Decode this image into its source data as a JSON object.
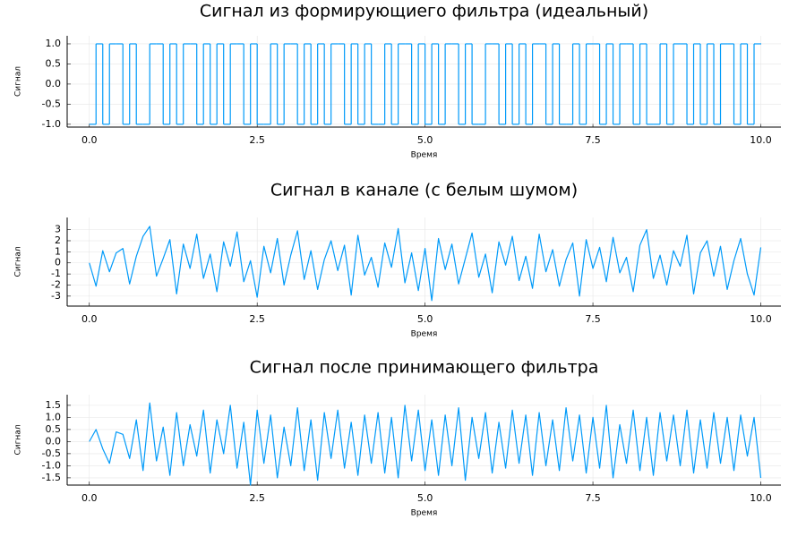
{
  "chart_data": [
    {
      "type": "line",
      "title": "Сигнал из формирующиего фильтра (идеальный)",
      "xlabel": "Время",
      "ylabel": "Сигнал",
      "step": "post",
      "grid": true,
      "color": "#009af9",
      "xlim": [
        -0.33,
        10.3
      ],
      "xticks": [
        {
          "value": 0,
          "label": "0.0"
        },
        2.5,
        {
          "value": 5,
          "label": "5.0"
        },
        7.5,
        {
          "value": 10,
          "label": "10.0"
        }
      ],
      "ylim": [
        -1.07,
        1.2
      ],
      "yticks": [
        {
          "value": 1,
          "label": "1.0"
        },
        0.5,
        {
          "value": 0,
          "label": "0.0"
        },
        -0.5,
        {
          "value": -1,
          "label": "-1.0"
        }
      ],
      "x": [
        0,
        0.1,
        0.2,
        0.3,
        0.4,
        0.5,
        0.6,
        0.7,
        0.8,
        0.9,
        1,
        1.1,
        1.2,
        1.3,
        1.4,
        1.5,
        1.6,
        1.7,
        1.8,
        1.9,
        2,
        2.1,
        2.2,
        2.3,
        2.4,
        2.5,
        2.6,
        2.7,
        2.8,
        2.9,
        3,
        3.1,
        3.2,
        3.3,
        3.4,
        3.5,
        3.6,
        3.7,
        3.8,
        3.9,
        4,
        4.1,
        4.2,
        4.3,
        4.4,
        4.5,
        4.6,
        4.7,
        4.8,
        4.9,
        5,
        5.1,
        5.2,
        5.3,
        5.4,
        5.5,
        5.6,
        5.7,
        5.8,
        5.9,
        6,
        6.1,
        6.2,
        6.3,
        6.4,
        6.5,
        6.6,
        6.7,
        6.8,
        6.9,
        7,
        7.1,
        7.2,
        7.3,
        7.4,
        7.5,
        7.6,
        7.7,
        7.8,
        7.9,
        8,
        8.1,
        8.2,
        8.3,
        8.4,
        8.5,
        8.6,
        8.7,
        8.8,
        8.9,
        9,
        9.1,
        9.2,
        9.3,
        9.4,
        9.5,
        9.6,
        9.7,
        9.8,
        9.9,
        10
      ],
      "values": [
        -1,
        1,
        -1,
        1,
        1,
        -1,
        1,
        -1,
        -1,
        1,
        1,
        -1,
        1,
        -1,
        1,
        1,
        -1,
        1,
        -1,
        1,
        -1,
        1,
        1,
        -1,
        1,
        -1,
        -1,
        1,
        -1,
        1,
        1,
        -1,
        1,
        -1,
        1,
        -1,
        1,
        1,
        -1,
        1,
        -1,
        1,
        -1,
        -1,
        1,
        -1,
        1,
        1,
        -1,
        1,
        -1,
        1,
        -1,
        1,
        1,
        -1,
        1,
        -1,
        -1,
        1,
        1,
        -1,
        1,
        -1,
        1,
        -1,
        1,
        1,
        -1,
        1,
        -1,
        -1,
        1,
        -1,
        1,
        1,
        -1,
        1,
        -1,
        1,
        1,
        -1,
        1,
        -1,
        -1,
        1,
        -1,
        1,
        1,
        -1,
        1,
        -1,
        1,
        -1,
        1,
        1,
        -1,
        1,
        -1,
        1,
        1
      ]
    },
    {
      "type": "line",
      "title": "Сигнал в канале (с белым шумом)",
      "xlabel": "Время",
      "ylabel": "Сигнал",
      "grid": true,
      "color": "#009af9",
      "xlim": [
        -0.33,
        10.3
      ],
      "xticks": [
        {
          "value": 0,
          "label": "0.0"
        },
        2.5,
        {
          "value": 5,
          "label": "5.0"
        },
        7.5,
        {
          "value": 10,
          "label": "10.0"
        }
      ],
      "ylim": [
        -3.9,
        4.1
      ],
      "yticks": [
        3,
        2,
        1,
        0,
        -1,
        -2,
        -3
      ],
      "x": [
        0,
        0.1,
        0.2,
        0.3,
        0.4,
        0.5,
        0.6,
        0.7,
        0.8,
        0.9,
        1,
        1.1,
        1.2,
        1.3,
        1.4,
        1.5,
        1.6,
        1.7,
        1.8,
        1.9,
        2,
        2.1,
        2.2,
        2.3,
        2.4,
        2.5,
        2.6,
        2.7,
        2.8,
        2.9,
        3,
        3.1,
        3.2,
        3.3,
        3.4,
        3.5,
        3.6,
        3.7,
        3.8,
        3.9,
        4,
        4.1,
        4.2,
        4.3,
        4.4,
        4.5,
        4.6,
        4.7,
        4.8,
        4.9,
        5,
        5.1,
        5.2,
        5.3,
        5.4,
        5.5,
        5.6,
        5.7,
        5.8,
        5.9,
        6,
        6.1,
        6.2,
        6.3,
        6.4,
        6.5,
        6.6,
        6.7,
        6.8,
        6.9,
        7,
        7.1,
        7.2,
        7.3,
        7.4,
        7.5,
        7.6,
        7.7,
        7.8,
        7.9,
        8,
        8.1,
        8.2,
        8.3,
        8.4,
        8.5,
        8.6,
        8.7,
        8.8,
        8.9,
        9,
        9.1,
        9.2,
        9.3,
        9.4,
        9.5,
        9.6,
        9.7,
        9.8,
        9.9,
        10
      ],
      "values": [
        0,
        -2.1,
        1.1,
        -0.8,
        0.9,
        1.3,
        -1.9,
        0.6,
        2.4,
        3.3,
        -1.2,
        0.4,
        2.1,
        -2.8,
        1.7,
        -0.5,
        2.6,
        -1.4,
        0.8,
        -2.6,
        1.9,
        -0.3,
        2.8,
        -1.7,
        0.2,
        -3.1,
        1.5,
        -0.9,
        2.2,
        -2.0,
        0.7,
        2.9,
        -1.5,
        1.1,
        -2.4,
        0.3,
        2.0,
        -0.7,
        1.6,
        -2.9,
        2.5,
        -1.1,
        0.5,
        -2.2,
        1.8,
        -0.4,
        3.1,
        -1.8,
        0.9,
        -2.5,
        1.3,
        -3.4,
        2.2,
        -0.6,
        1.7,
        -1.9,
        0.4,
        2.7,
        -1.3,
        0.8,
        -2.7,
        1.9,
        -0.2,
        2.4,
        -1.6,
        0.6,
        -2.3,
        2.6,
        -0.8,
        1.2,
        -2.1,
        0.3,
        1.8,
        -3.0,
        2.1,
        -0.5,
        1.4,
        -1.7,
        2.3,
        -0.9,
        0.5,
        -2.6,
        1.6,
        3.0,
        -1.4,
        0.7,
        -2.0,
        1.1,
        -0.3,
        2.5,
        -2.8,
        0.9,
        2.0,
        -1.2,
        1.5,
        -2.4,
        0.2,
        2.2,
        -1.0,
        -2.9,
        1.4
      ]
    },
    {
      "type": "line",
      "title": "Сигнал после принимающего фильтра",
      "xlabel": "Время",
      "ylabel": "Сигнал",
      "grid": true,
      "color": "#009af9",
      "xlim": [
        -0.33,
        10.3
      ],
      "xticks": [
        {
          "value": 0,
          "label": "0.0"
        },
        2.5,
        {
          "value": 5,
          "label": "5.0"
        },
        7.5,
        {
          "value": 10,
          "label": "10.0"
        }
      ],
      "ylim": [
        -1.8,
        1.94
      ],
      "yticks": [
        1.5,
        {
          "value": 1,
          "label": "1.0"
        },
        0.5,
        {
          "value": 0,
          "label": "0.0"
        },
        -0.5,
        {
          "value": -1,
          "label": "-1.0"
        },
        -1.5
      ],
      "x": [
        0,
        0.1,
        0.2,
        0.3,
        0.4,
        0.5,
        0.6,
        0.7,
        0.8,
        0.9,
        1,
        1.1,
        1.2,
        1.3,
        1.4,
        1.5,
        1.6,
        1.7,
        1.8,
        1.9,
        2,
        2.1,
        2.2,
        2.3,
        2.4,
        2.5,
        2.6,
        2.7,
        2.8,
        2.9,
        3,
        3.1,
        3.2,
        3.3,
        3.4,
        3.5,
        3.6,
        3.7,
        3.8,
        3.9,
        4,
        4.1,
        4.2,
        4.3,
        4.4,
        4.5,
        4.6,
        4.7,
        4.8,
        4.9,
        5,
        5.1,
        5.2,
        5.3,
        5.4,
        5.5,
        5.6,
        5.7,
        5.8,
        5.9,
        6,
        6.1,
        6.2,
        6.3,
        6.4,
        6.5,
        6.6,
        6.7,
        6.8,
        6.9,
        7,
        7.1,
        7.2,
        7.3,
        7.4,
        7.5,
        7.6,
        7.7,
        7.8,
        7.9,
        8,
        8.1,
        8.2,
        8.3,
        8.4,
        8.5,
        8.6,
        8.7,
        8.8,
        8.9,
        9,
        9.1,
        9.2,
        9.3,
        9.4,
        9.5,
        9.6,
        9.7,
        9.8,
        9.9,
        10
      ],
      "values": [
        0,
        0.5,
        -0.3,
        -0.9,
        0.4,
        0.3,
        -0.7,
        0.9,
        -1.2,
        1.6,
        -0.8,
        0.6,
        -1.4,
        1.2,
        -1.0,
        0.7,
        -0.6,
        1.3,
        -1.3,
        0.9,
        -0.5,
        1.5,
        -1.1,
        0.8,
        -1.8,
        1.3,
        -0.9,
        1.1,
        -1.5,
        0.6,
        -1.0,
        1.4,
        -1.2,
        0.9,
        -1.6,
        1.2,
        -0.7,
        1.3,
        -1.1,
        0.8,
        -1.4,
        1.1,
        -0.9,
        1.2,
        -1.3,
        1.0,
        -1.5,
        1.5,
        -0.8,
        1.3,
        -1.2,
        0.9,
        -1.4,
        1.1,
        -1.0,
        1.4,
        -1.6,
        1.0,
        -0.7,
        1.2,
        -1.3,
        0.8,
        -1.1,
        1.3,
        -0.9,
        1.1,
        -1.4,
        1.2,
        -1.0,
        0.9,
        -1.2,
        1.4,
        -0.8,
        1.1,
        -1.3,
        1.0,
        -1.1,
        1.5,
        -1.5,
        0.7,
        -0.9,
        1.3,
        -1.2,
        1.0,
        -1.4,
        1.2,
        -0.8,
        1.1,
        -1.0,
        1.3,
        -1.3,
        0.9,
        -1.1,
        1.2,
        -0.9,
        1.0,
        -1.2,
        1.1,
        -0.6,
        1.0,
        -1.5
      ]
    }
  ]
}
